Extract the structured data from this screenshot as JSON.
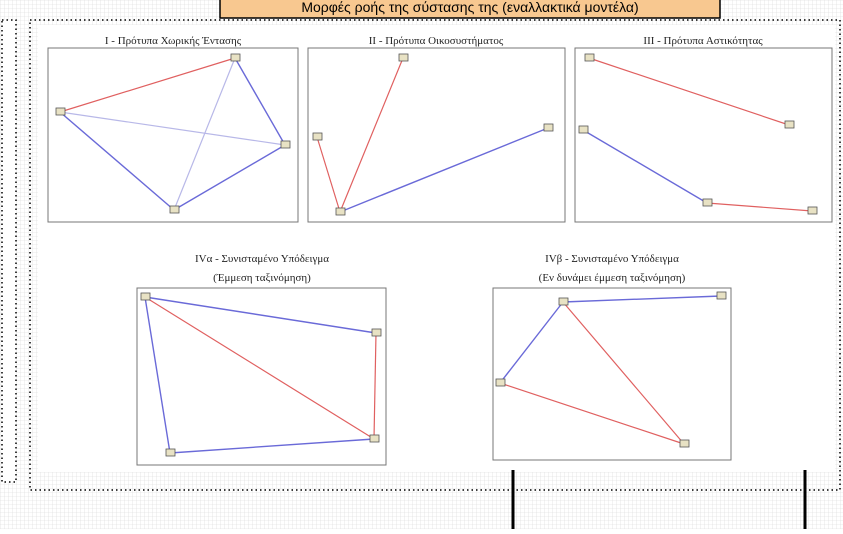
{
  "banner": {
    "title": "Μορφές ροής της σύστασης της (εναλλακτικά μοντέλα)"
  },
  "panels": [
    {
      "title": "I - Πρότυπα Χωρικής Έντασης"
    },
    {
      "title": "II - Πρότυπα Οικοσυστήματος"
    },
    {
      "title": "III - Πρότυπα Αστικότητας"
    },
    {
      "title": "IVα - Συνισταμένο Υπόδειγμα",
      "subtitle": "(Έμμεση ταξινόμηση)"
    },
    {
      "title": "IVβ - Συνισταμένο Υπόδειγμα",
      "subtitle": "(Εν δυνάμει έμμεση ταξινόμηση)"
    }
  ]
}
